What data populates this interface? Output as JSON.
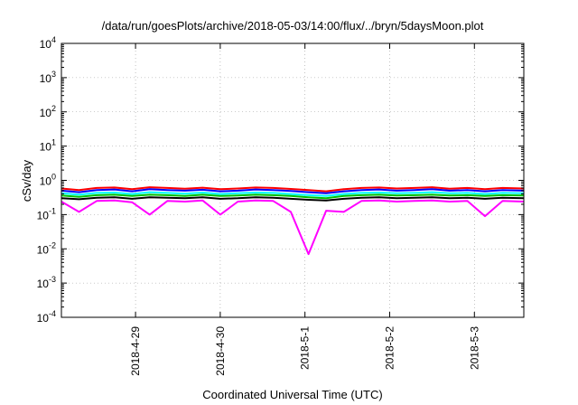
{
  "chart_data": {
    "type": "line",
    "title": "/data/run/goesPlots/archive/2018-05-03/14:00/flux/../bryn/5daysMoon.plot",
    "xlabel": "Coordinated Universal Time (UTC)",
    "ylabel": "cSv/day",
    "yscale": "log",
    "ylim": [
      0.0001,
      10000
    ],
    "xlim": [
      "2018-04-28 03:00",
      "2018-05-03 14:00"
    ],
    "grid": true,
    "legend": "none",
    "y_ticks": [
      {
        "value": 0.0001,
        "base": "10",
        "exp": "-4"
      },
      {
        "value": 0.001,
        "base": "10",
        "exp": "-3"
      },
      {
        "value": 0.01,
        "base": "10",
        "exp": "-2"
      },
      {
        "value": 0.1,
        "base": "10",
        "exp": "-1"
      },
      {
        "value": 1,
        "base": "10",
        "exp": "0"
      },
      {
        "value": 10,
        "base": "10",
        "exp": "1"
      },
      {
        "value": 100,
        "base": "10",
        "exp": "2"
      },
      {
        "value": 1000,
        "base": "10",
        "exp": "3"
      },
      {
        "value": 10000,
        "base": "10",
        "exp": "4"
      }
    ],
    "x_ticks": [
      {
        "value": "2018-04-29 00:00",
        "label": "2018-4-29"
      },
      {
        "value": "2018-04-30 00:00",
        "label": "2018-4-30"
      },
      {
        "value": "2018-05-01 00:00",
        "label": "2018-5-1"
      },
      {
        "value": "2018-05-02 00:00",
        "label": "2018-5-2"
      },
      {
        "value": "2018-05-03 00:00",
        "label": "2018-5-3"
      }
    ],
    "series": [
      {
        "color": "#ff0000",
        "x": [
          "2018-04-28 03:00",
          "2018-04-28 08:00",
          "2018-04-28 13:00",
          "2018-04-28 18:00",
          "2018-04-28 23:00",
          "2018-04-29 04:00",
          "2018-04-29 09:00",
          "2018-04-29 14:00",
          "2018-04-29 19:00",
          "2018-04-30 00:00",
          "2018-04-30 05:00",
          "2018-04-30 10:00",
          "2018-04-30 15:00",
          "2018-04-30 20:00",
          "2018-05-01 01:00",
          "2018-05-01 06:00",
          "2018-05-01 11:00",
          "2018-05-01 16:00",
          "2018-05-01 21:00",
          "2018-05-02 02:00",
          "2018-05-02 07:00",
          "2018-05-02 12:00",
          "2018-05-02 17:00",
          "2018-05-02 22:00",
          "2018-05-03 03:00",
          "2018-05-03 08:00",
          "2018-05-03 14:00"
        ],
        "y": [
          0.58,
          0.52,
          0.6,
          0.62,
          0.55,
          0.63,
          0.6,
          0.57,
          0.61,
          0.55,
          0.58,
          0.62,
          0.6,
          0.56,
          0.52,
          0.48,
          0.55,
          0.6,
          0.62,
          0.58,
          0.6,
          0.63,
          0.57,
          0.6,
          0.55,
          0.6,
          0.58
        ]
      },
      {
        "color": "#0000ff",
        "x": [
          "2018-04-28 03:00",
          "2018-04-28 08:00",
          "2018-04-28 13:00",
          "2018-04-28 18:00",
          "2018-04-28 23:00",
          "2018-04-29 04:00",
          "2018-04-29 09:00",
          "2018-04-29 14:00",
          "2018-04-29 19:00",
          "2018-04-30 00:00",
          "2018-04-30 05:00",
          "2018-04-30 10:00",
          "2018-04-30 15:00",
          "2018-04-30 20:00",
          "2018-05-01 01:00",
          "2018-05-01 06:00",
          "2018-05-01 11:00",
          "2018-05-01 16:00",
          "2018-05-01 21:00",
          "2018-05-02 02:00",
          "2018-05-02 07:00",
          "2018-05-02 12:00",
          "2018-05-02 17:00",
          "2018-05-02 22:00",
          "2018-05-03 03:00",
          "2018-05-03 08:00",
          "2018-05-03 14:00"
        ],
        "y": [
          0.5,
          0.45,
          0.52,
          0.54,
          0.48,
          0.55,
          0.52,
          0.5,
          0.53,
          0.48,
          0.5,
          0.54,
          0.52,
          0.49,
          0.45,
          0.42,
          0.48,
          0.52,
          0.54,
          0.5,
          0.52,
          0.55,
          0.5,
          0.52,
          0.48,
          0.52,
          0.5
        ]
      },
      {
        "color": "#00ffff",
        "x": [
          "2018-04-28 03:00",
          "2018-04-28 08:00",
          "2018-04-28 13:00",
          "2018-04-28 18:00",
          "2018-04-28 23:00",
          "2018-04-29 04:00",
          "2018-04-29 09:00",
          "2018-04-29 14:00",
          "2018-04-29 19:00",
          "2018-04-30 00:00",
          "2018-04-30 05:00",
          "2018-04-30 10:00",
          "2018-04-30 15:00",
          "2018-04-30 20:00",
          "2018-05-01 01:00",
          "2018-05-01 06:00",
          "2018-05-01 11:00",
          "2018-05-01 16:00",
          "2018-05-01 21:00",
          "2018-05-02 02:00",
          "2018-05-02 07:00",
          "2018-05-02 12:00",
          "2018-05-02 17:00",
          "2018-05-02 22:00",
          "2018-05-03 03:00",
          "2018-05-03 08:00",
          "2018-05-03 14:00"
        ],
        "y": [
          0.42,
          0.38,
          0.43,
          0.44,
          0.4,
          0.45,
          0.43,
          0.41,
          0.44,
          0.4,
          0.42,
          0.44,
          0.43,
          0.4,
          0.37,
          0.35,
          0.4,
          0.43,
          0.44,
          0.42,
          0.43,
          0.45,
          0.42,
          0.43,
          0.4,
          0.43,
          0.42
        ]
      },
      {
        "color": "#00c000",
        "x": [
          "2018-04-28 03:00",
          "2018-04-28 08:00",
          "2018-04-28 13:00",
          "2018-04-28 18:00",
          "2018-04-28 23:00",
          "2018-04-29 04:00",
          "2018-04-29 09:00",
          "2018-04-29 14:00",
          "2018-04-29 19:00",
          "2018-04-30 00:00",
          "2018-04-30 05:00",
          "2018-04-30 10:00",
          "2018-04-30 15:00",
          "2018-04-30 20:00",
          "2018-05-01 01:00",
          "2018-05-01 06:00",
          "2018-05-01 11:00",
          "2018-05-01 16:00",
          "2018-05-01 21:00",
          "2018-05-02 02:00",
          "2018-05-02 07:00",
          "2018-05-02 12:00",
          "2018-05-02 17:00",
          "2018-05-02 22:00",
          "2018-05-03 03:00",
          "2018-05-03 08:00",
          "2018-05-03 14:00"
        ],
        "y": [
          0.36,
          0.33,
          0.37,
          0.38,
          0.35,
          0.38,
          0.37,
          0.35,
          0.38,
          0.35,
          0.36,
          0.38,
          0.37,
          0.35,
          0.32,
          0.3,
          0.35,
          0.37,
          0.38,
          0.36,
          0.37,
          0.38,
          0.36,
          0.37,
          0.35,
          0.37,
          0.36
        ]
      },
      {
        "color": "#000000",
        "x": [
          "2018-04-28 03:00",
          "2018-04-28 08:00",
          "2018-04-28 13:00",
          "2018-04-28 18:00",
          "2018-04-28 23:00",
          "2018-04-29 04:00",
          "2018-04-29 09:00",
          "2018-04-29 14:00",
          "2018-04-29 19:00",
          "2018-04-30 00:00",
          "2018-04-30 05:00",
          "2018-04-30 10:00",
          "2018-04-30 15:00",
          "2018-04-30 20:00",
          "2018-05-01 01:00",
          "2018-05-01 06:00",
          "2018-05-01 11:00",
          "2018-05-01 16:00",
          "2018-05-01 21:00",
          "2018-05-02 02:00",
          "2018-05-02 07:00",
          "2018-05-02 12:00",
          "2018-05-02 17:00",
          "2018-05-02 22:00",
          "2018-05-03 03:00",
          "2018-05-03 08:00",
          "2018-05-03 14:00"
        ],
        "y": [
          0.3,
          0.28,
          0.31,
          0.32,
          0.29,
          0.32,
          0.31,
          0.3,
          0.32,
          0.29,
          0.3,
          0.32,
          0.31,
          0.29,
          0.27,
          0.26,
          0.29,
          0.31,
          0.32,
          0.3,
          0.31,
          0.32,
          0.3,
          0.31,
          0.29,
          0.31,
          0.3
        ]
      },
      {
        "color": "#ff00ff",
        "x": [
          "2018-04-28 03:00",
          "2018-04-28 08:00",
          "2018-04-28 13:00",
          "2018-04-28 18:00",
          "2018-04-28 23:00",
          "2018-04-29 04:00",
          "2018-04-29 09:00",
          "2018-04-29 14:00",
          "2018-04-29 19:00",
          "2018-04-30 00:00",
          "2018-04-30 05:00",
          "2018-04-30 10:00",
          "2018-04-30 15:00",
          "2018-04-30 20:00",
          "2018-05-01 01:00",
          "2018-05-01 06:00",
          "2018-05-01 11:00",
          "2018-05-01 16:00",
          "2018-05-01 21:00",
          "2018-05-02 02:00",
          "2018-05-02 07:00",
          "2018-05-02 12:00",
          "2018-05-02 17:00",
          "2018-05-02 22:00",
          "2018-05-03 03:00",
          "2018-05-03 08:00",
          "2018-05-03 14:00"
        ],
        "y": [
          0.24,
          0.12,
          0.25,
          0.26,
          0.23,
          0.1,
          0.25,
          0.24,
          0.26,
          0.1,
          0.24,
          0.26,
          0.25,
          0.12,
          0.007,
          0.13,
          0.12,
          0.25,
          0.26,
          0.24,
          0.25,
          0.26,
          0.24,
          0.25,
          0.09,
          0.25,
          0.24
        ]
      }
    ]
  }
}
